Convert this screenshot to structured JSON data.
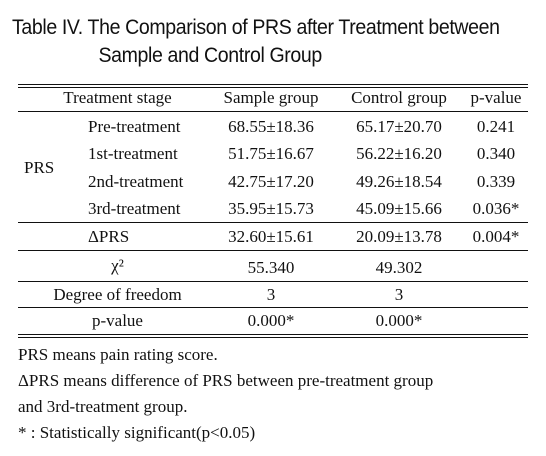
{
  "title": {
    "line1": "Table IV. The Comparison of PRS after Treatment between",
    "line2": "Sample and Control Group"
  },
  "table": {
    "headers": [
      "Treatment stage",
      "Sample group",
      "Control group",
      "p-value"
    ],
    "prs_label": "PRS",
    "prs_rows": [
      {
        "stage": "Pre-treatment",
        "sample": "68.55±18.36",
        "control": "65.17±20.70",
        "p": "0.241"
      },
      {
        "stage": "1st-treatment",
        "sample": "51.75±16.67",
        "control": "56.22±16.20",
        "p": "0.340"
      },
      {
        "stage": "2nd-treatment",
        "sample": "42.75±17.20",
        "control": "49.26±18.54",
        "p": "0.339"
      },
      {
        "stage": "3rd-treatment",
        "sample": "35.95±15.73",
        "control": "45.09±15.66",
        "p": "0.036*"
      }
    ],
    "delta_row": {
      "stage": "ΔPRS",
      "sample": "32.60±15.61",
      "control": "20.09±13.78",
      "p": "0.004*"
    },
    "chi_row": {
      "label": "χ²",
      "sample": "55.340",
      "control": "49.302"
    },
    "df_row": {
      "label": "Degree of freedom",
      "sample": "3",
      "control": "3"
    },
    "pvalue_row": {
      "label": "p-value",
      "sample": "0.000*",
      "control": "0.000*"
    }
  },
  "notes": [
    "PRS means pain rating score.",
    "ΔPRS means difference of PRS between pre-treatment group",
    "and 3rd-treatment group.",
    "* : Statistically significant(p<0.05)"
  ]
}
